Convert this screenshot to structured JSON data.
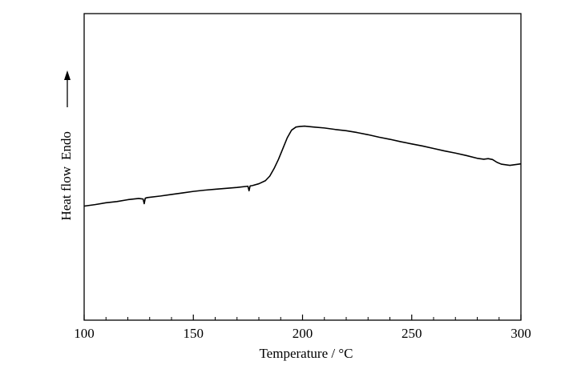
{
  "chart_data": {
    "type": "line",
    "title": "",
    "xlabel": "Temperature / °C",
    "ylabel": "Heat flow",
    "ylabel_direction": "Endo",
    "xlim": [
      100,
      300
    ],
    "ylim": [
      0,
      10
    ],
    "x_ticks": [
      100,
      150,
      200,
      250,
      300
    ],
    "y_ticks_shown": false,
    "grid": false,
    "series": [
      {
        "x": [
          100,
          105,
          110,
          115,
          120,
          125,
          127,
          127.5,
          128,
          129,
          135,
          140,
          145,
          150,
          155,
          160,
          165,
          170,
          175,
          175.5,
          176,
          177,
          180,
          183,
          185,
          187,
          189,
          191,
          193,
          195,
          197,
          199,
          201,
          205,
          210,
          215,
          220,
          225,
          230,
          235,
          240,
          245,
          250,
          255,
          260,
          265,
          270,
          275,
          280,
          283,
          285,
          287,
          289,
          291,
          295,
          300
        ],
        "y": [
          3.72,
          3.77,
          3.83,
          3.87,
          3.93,
          3.97,
          3.95,
          3.8,
          3.98,
          4.0,
          4.05,
          4.1,
          4.15,
          4.2,
          4.24,
          4.27,
          4.3,
          4.33,
          4.37,
          4.22,
          4.38,
          4.39,
          4.45,
          4.55,
          4.7,
          4.95,
          5.25,
          5.6,
          5.95,
          6.2,
          6.3,
          6.32,
          6.33,
          6.3,
          6.27,
          6.22,
          6.18,
          6.12,
          6.05,
          5.97,
          5.9,
          5.82,
          5.75,
          5.68,
          5.6,
          5.52,
          5.45,
          5.37,
          5.28,
          5.25,
          5.27,
          5.24,
          5.15,
          5.09,
          5.05,
          5.1
        ]
      }
    ]
  }
}
